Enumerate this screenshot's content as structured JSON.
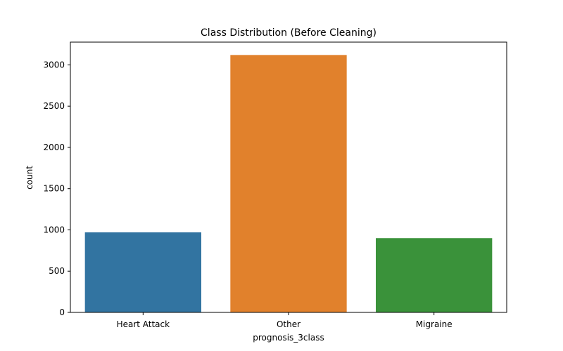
{
  "chart_data": {
    "type": "bar",
    "title": "Class Distribution (Before Cleaning)",
    "xlabel": "prognosis_3class",
    "ylabel": "count",
    "categories": [
      "Heart Attack",
      "Other",
      "Migraine"
    ],
    "values": [
      970,
      3120,
      900
    ],
    "colors": [
      "#3274a1",
      "#e1812c",
      "#3a923a"
    ],
    "ylim": [
      0,
      3276
    ],
    "yticks": [
      0,
      500,
      1000,
      1500,
      2000,
      2500,
      3000
    ],
    "ytick_labels": [
      "0",
      "500",
      "1000",
      "1500",
      "2000",
      "2500",
      "3000"
    ],
    "grid": false,
    "legend": "none"
  }
}
